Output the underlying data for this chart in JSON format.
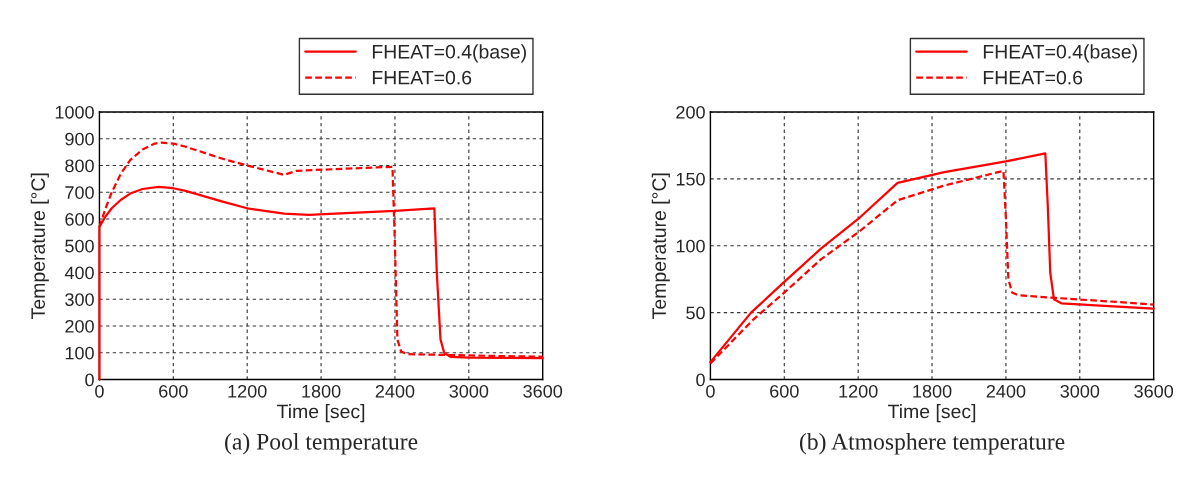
{
  "chart_data": [
    {
      "type": "line",
      "xlabel": "Time [sec]",
      "ylabel": "Temperature [°C]",
      "annotations": [
        "(a) Pool temperature"
      ],
      "xlim": [
        0,
        3600
      ],
      "xticks": [
        0,
        600,
        1200,
        1800,
        2400,
        3000,
        3600
      ],
      "ylim": [
        0,
        1000
      ],
      "yticks": [
        0,
        100,
        200,
        300,
        400,
        500,
        600,
        700,
        800,
        900,
        1000
      ],
      "grid": true,
      "legend": "top right",
      "marker": "none",
      "series": [
        {
          "name": "FHEAT=0.4(base)",
          "color": "#ff0000",
          "line_style": "solid",
          "x": [
            0,
            0,
            50,
            100,
            175,
            250,
            350,
            480,
            600,
            700,
            1000,
            1200,
            1500,
            1700,
            2000,
            2400,
            2720,
            2740,
            2770,
            2800,
            2850,
            3000,
            3600
          ],
          "values": [
            0,
            570,
            610,
            640,
            672,
            695,
            712,
            720,
            715,
            705,
            665,
            640,
            620,
            615,
            622,
            630,
            640,
            400,
            150,
            100,
            85,
            82,
            80
          ]
        },
        {
          "name": "FHEAT=0.6",
          "color": "#ff0000",
          "line_style": "dashed",
          "x": [
            0,
            50,
            100,
            175,
            250,
            350,
            450,
            500,
            600,
            700,
            1000,
            1200,
            1500,
            1600,
            2000,
            2380,
            2400,
            2420,
            2450,
            2500,
            3000,
            3600
          ],
          "values": [
            570,
            640,
            700,
            770,
            820,
            860,
            882,
            885,
            882,
            870,
            825,
            800,
            765,
            780,
            788,
            795,
            500,
            150,
            105,
            95,
            90,
            85
          ]
        }
      ]
    },
    {
      "type": "line",
      "xlabel": "Time [sec]",
      "ylabel": "Temperature [°C]",
      "annotations": [
        "(b) Atmosphere temperature"
      ],
      "xlim": [
        0,
        3600
      ],
      "xticks": [
        0,
        600,
        1200,
        1800,
        2400,
        3000,
        3600
      ],
      "ylim": [
        0,
        200
      ],
      "yticks": [
        0,
        50,
        100,
        150,
        200
      ],
      "grid": true,
      "legend": "top right",
      "marker": "none",
      "series": [
        {
          "name": "FHEAT=0.4(base)",
          "color": "#ff0000",
          "line_style": "solid",
          "x": [
            0,
            330,
            600,
            900,
            1200,
            1520,
            1900,
            2400,
            2720,
            2740,
            2760,
            2790,
            2850,
            3200,
            3600
          ],
          "values": [
            13,
            50,
            73,
            98,
            120,
            147,
            155,
            163,
            169,
            130,
            80,
            60,
            57,
            55,
            53
          ]
        },
        {
          "name": "FHEAT=0.6",
          "color": "#ff0000",
          "line_style": "dashed",
          "x": [
            0,
            350,
            600,
            900,
            1200,
            1520,
            1900,
            2380,
            2400,
            2420,
            2450,
            2500,
            2800,
            3300,
            3600
          ],
          "values": [
            12,
            45,
            65,
            90,
            110,
            134,
            145,
            156,
            120,
            75,
            65,
            63,
            61,
            58,
            56
          ]
        }
      ]
    }
  ]
}
